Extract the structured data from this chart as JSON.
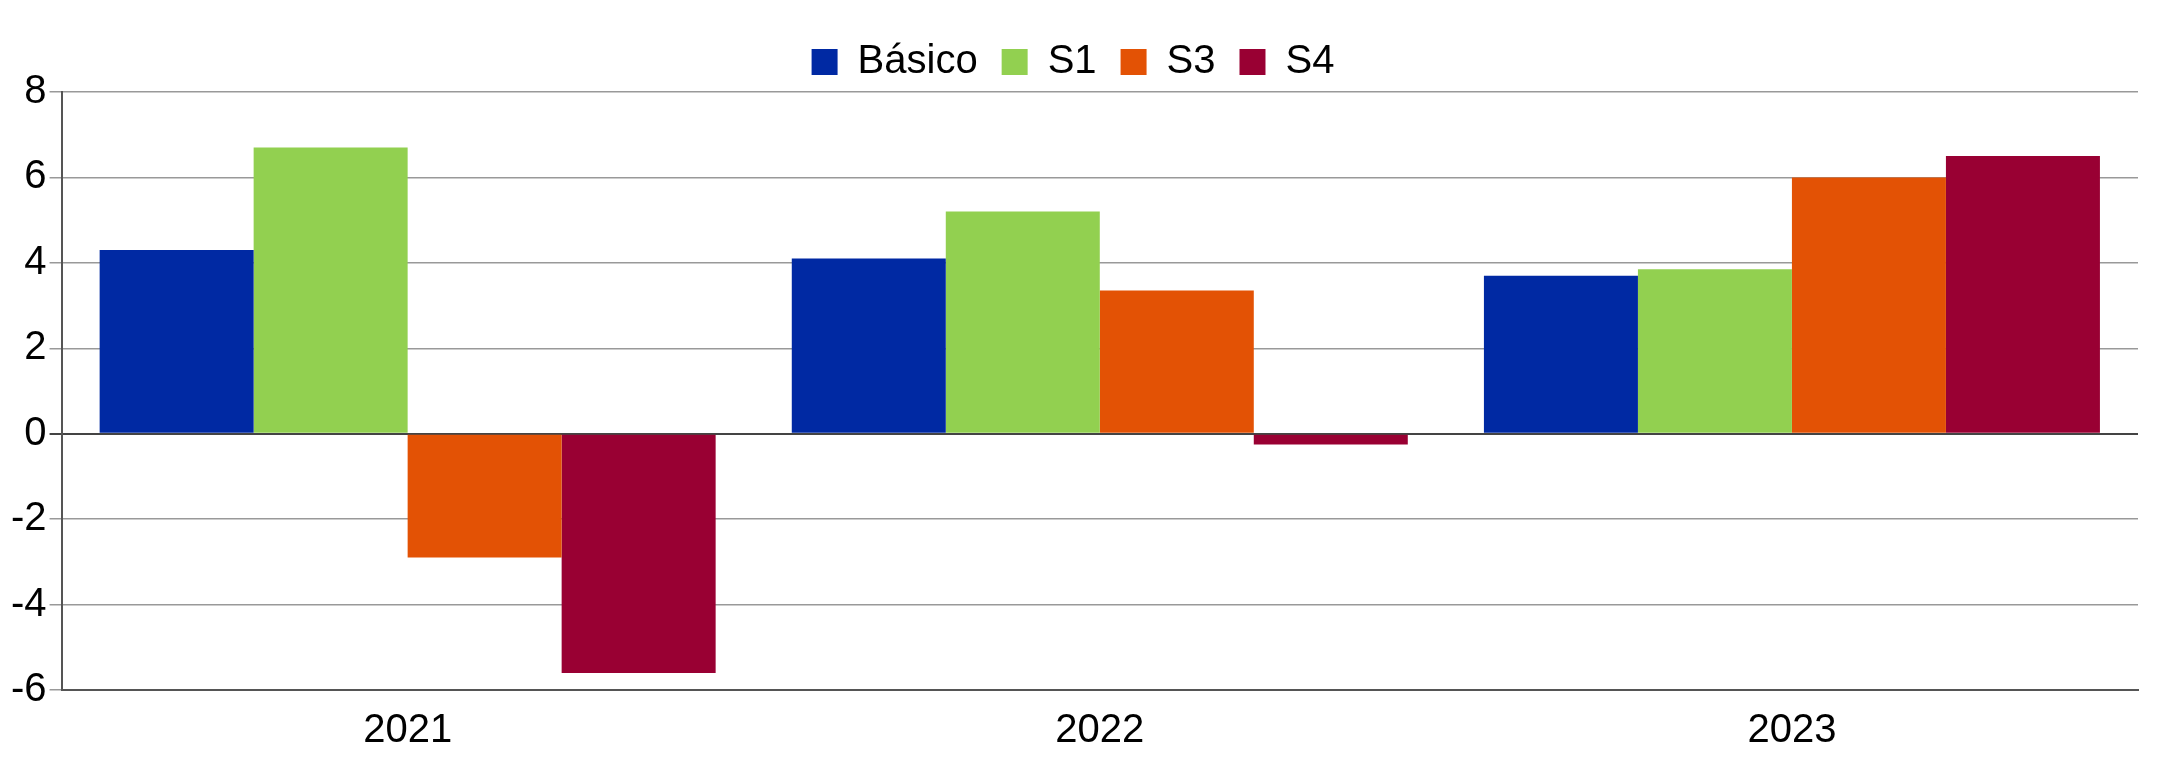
{
  "chart_data": {
    "type": "bar",
    "categories": [
      "2021",
      "2022",
      "2023"
    ],
    "series": [
      {
        "name": "Básico",
        "color": "#0029a3",
        "values": [
          4.3,
          4.1,
          3.7
        ]
      },
      {
        "name": "S1",
        "color": "#92d050",
        "values": [
          6.7,
          5.2,
          3.85
        ]
      },
      {
        "name": "S3",
        "color": "#e35205",
        "values": [
          -2.9,
          3.35,
          6.0
        ]
      },
      {
        "name": "S4",
        "color": "#990033",
        "values": [
          -5.6,
          -0.25,
          6.5
        ]
      }
    ],
    "ylim": [
      -6,
      8
    ],
    "yticks": [
      -6,
      -4,
      -2,
      0,
      2,
      4,
      6,
      8
    ],
    "grid": "y",
    "legend": "top"
  }
}
